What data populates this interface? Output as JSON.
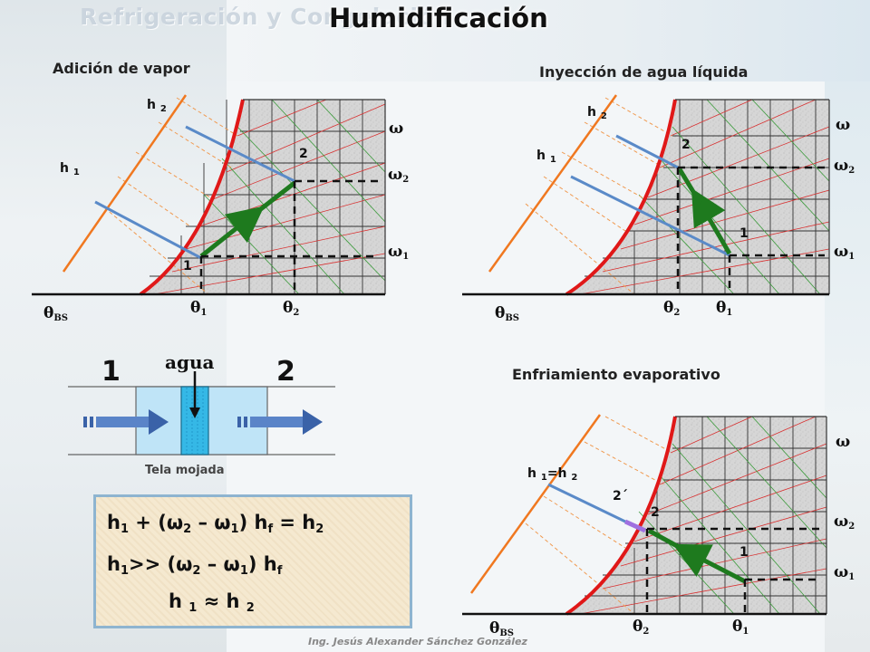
{
  "header": {
    "banner": "Refrigeración y Congelación",
    "title": "Humidificación"
  },
  "colors": {
    "saturation_curve": "#e01818",
    "wet_bulb_axis": "#f07820",
    "enthalpy_line": "#5a8ac8",
    "process_arrow": "#1e7a1e",
    "grid_chart_bg": "#d0d0d0",
    "formula_border": "#8eb4d0"
  },
  "charts": {
    "steam": {
      "title": "Adición de vapor",
      "h_high": "h",
      "h_high_sub": "2",
      "h_low": "h",
      "h_low_sub": "1",
      "point_start": "1",
      "point_end": "2",
      "omega": "ω",
      "omega2": "ω",
      "omega2_sub": "2",
      "omega1": "ω",
      "omega1_sub": "1",
      "theta_bs": "θ",
      "theta_bs_sub": "BS",
      "theta1": "θ",
      "theta1_sub": "1",
      "theta2": "θ",
      "theta2_sub": "2"
    },
    "water": {
      "title": "Inyección de agua líquida",
      "h_high": "h",
      "h_high_sub": "2",
      "h_low": "h",
      "h_low_sub": "1",
      "point_start": "1",
      "point_end": "2",
      "omega": "ω",
      "omega2": "ω",
      "omega2_sub": "2",
      "omega1": "ω",
      "omega1_sub": "1",
      "theta_bs": "θ",
      "theta_bs_sub": "BS",
      "theta2": "θ",
      "theta2_sub": "2",
      "theta1": "θ",
      "theta1_sub": "1"
    },
    "evaporative": {
      "title": "Enfriamiento evaporativo",
      "h_equal": "h",
      "h_equal_sub1": "1",
      "h_equal_mid": "=h",
      "h_equal_sub2": "2",
      "point_prime": "2´",
      "point_end": "2",
      "point_start": "1",
      "omega": "ω",
      "omega2": "ω",
      "omega2_sub": "2",
      "omega1": "ω",
      "omega1_sub": "1",
      "theta_bs": "θ",
      "theta_bs_sub": "BS",
      "theta2": "θ",
      "theta2_sub": "2",
      "theta1": "θ",
      "theta1_sub": "1"
    }
  },
  "device": {
    "inlet_num": "1",
    "outlet_num": "2",
    "water_label": "agua",
    "cloth_label": "Tela mojada"
  },
  "formulas": {
    "line1": {
      "h1": "h",
      "h1_sub": "1",
      "plus": " + (",
      "w2": "ω",
      "w2_sub": "2",
      "minus": " – ",
      "w1": "ω",
      "w1_sub": "1",
      "close": ") h",
      "f_sub": "f",
      "eq": " = h",
      "h2_sub": "2"
    },
    "line2": {
      "h1": "h",
      "h1_sub": "1",
      "gg": ">> (",
      "w2": "ω",
      "w2_sub": "2",
      "minus": " – ",
      "w1": "ω",
      "w1_sub": "1",
      "close": ") h",
      "f_sub": "f"
    },
    "line3": {
      "h1": "h ",
      "h1_sub": "1",
      "approx": " ≈ h ",
      "h2_sub": "2"
    }
  },
  "footer": "Ing. Jesús Alexander Sánchez González"
}
